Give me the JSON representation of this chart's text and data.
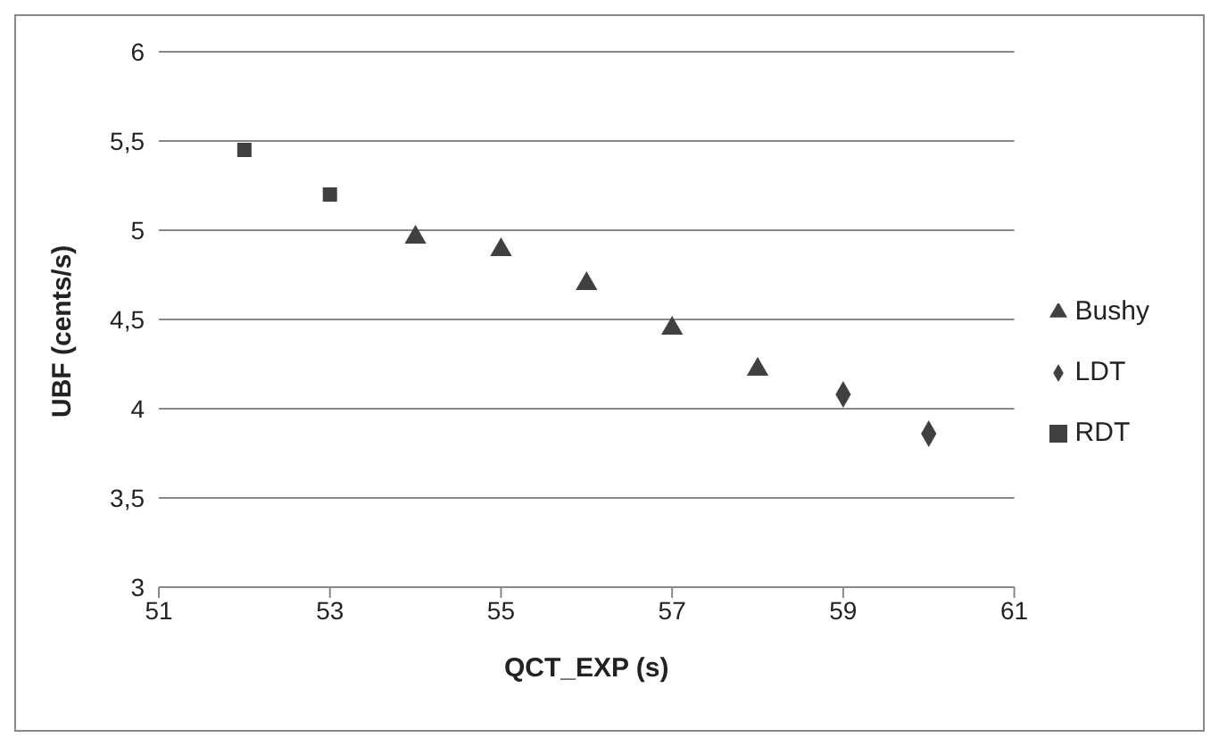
{
  "chart_data": {
    "type": "scatter",
    "xlabel": "QCT_EXP (s)",
    "ylabel": "UBF (cents/s)",
    "xlim": [
      51,
      61
    ],
    "xticks": [
      51,
      53,
      55,
      57,
      59,
      61
    ],
    "ylim": [
      3,
      6
    ],
    "yticks": [
      3,
      {
        "value": 3.5,
        "label": "3,5"
      },
      4,
      {
        "value": 4.5,
        "label": "4,5"
      },
      5,
      {
        "value": 5.5,
        "label": "5,5"
      },
      6
    ],
    "grid": "y",
    "legend": "right",
    "series": [
      {
        "name": "RDT",
        "color": "#404040",
        "marker": "square",
        "x": [
          52,
          53
        ],
        "values": [
          5.45,
          5.2
        ]
      },
      {
        "name": "Bushy",
        "color": "#404040",
        "marker": "triangle",
        "x": [
          54,
          55,
          56,
          57,
          58
        ],
        "values": [
          4.96,
          4.89,
          4.7,
          4.45,
          4.22
        ]
      },
      {
        "name": "LDT",
        "color": "#404040",
        "marker": "diamond",
        "x": [
          59,
          60
        ],
        "values": [
          4.08,
          3.86
        ]
      }
    ]
  }
}
